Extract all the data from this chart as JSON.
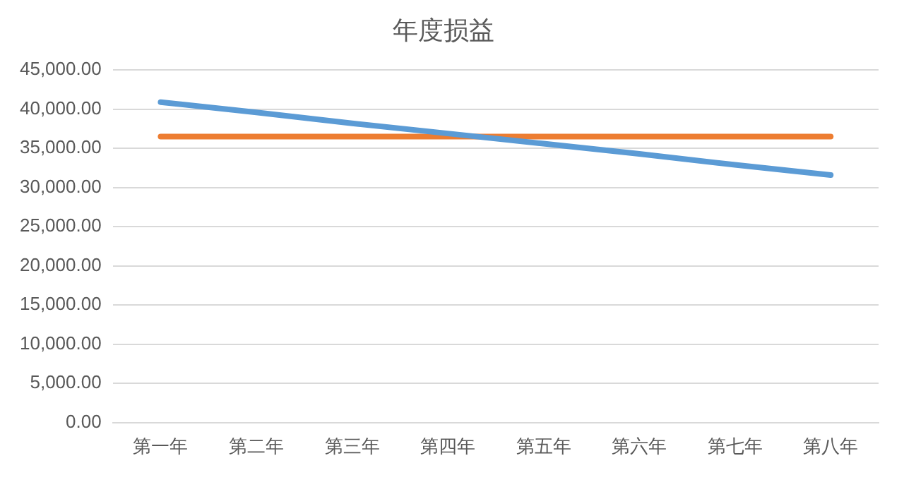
{
  "chart_data": {
    "type": "line",
    "title": "年度损益",
    "categories": [
      "第一年",
      "第二年",
      "第三年",
      "第四年",
      "第五年",
      "第六年",
      "第七年",
      "第八年"
    ],
    "series": [
      {
        "color": "#5b9bd5",
        "values": [
          40900,
          39600,
          38200,
          36900,
          35600,
          34300,
          32900,
          31600
        ]
      },
      {
        "color": "#ed7d31",
        "values": [
          36500,
          36500,
          36500,
          36500,
          36500,
          36500,
          36500,
          36500
        ]
      }
    ],
    "ylim": [
      0,
      45000
    ],
    "yticks": [
      {
        "value": 0,
        "label": "0.00"
      },
      {
        "value": 5000,
        "label": "5,000.00"
      },
      {
        "value": 10000,
        "label": "10,000.00"
      },
      {
        "value": 15000,
        "label": "15,000.00"
      },
      {
        "value": 20000,
        "label": "20,000.00"
      },
      {
        "value": 25000,
        "label": "25,000.00"
      },
      {
        "value": 30000,
        "label": "30,000.00"
      },
      {
        "value": 35000,
        "label": "35,000.00"
      },
      {
        "value": 40000,
        "label": "40,000.00"
      },
      {
        "value": 45000,
        "label": "45,000.00"
      }
    ],
    "grid": "y",
    "legend": false,
    "marker": "none",
    "line_style": "solid"
  }
}
